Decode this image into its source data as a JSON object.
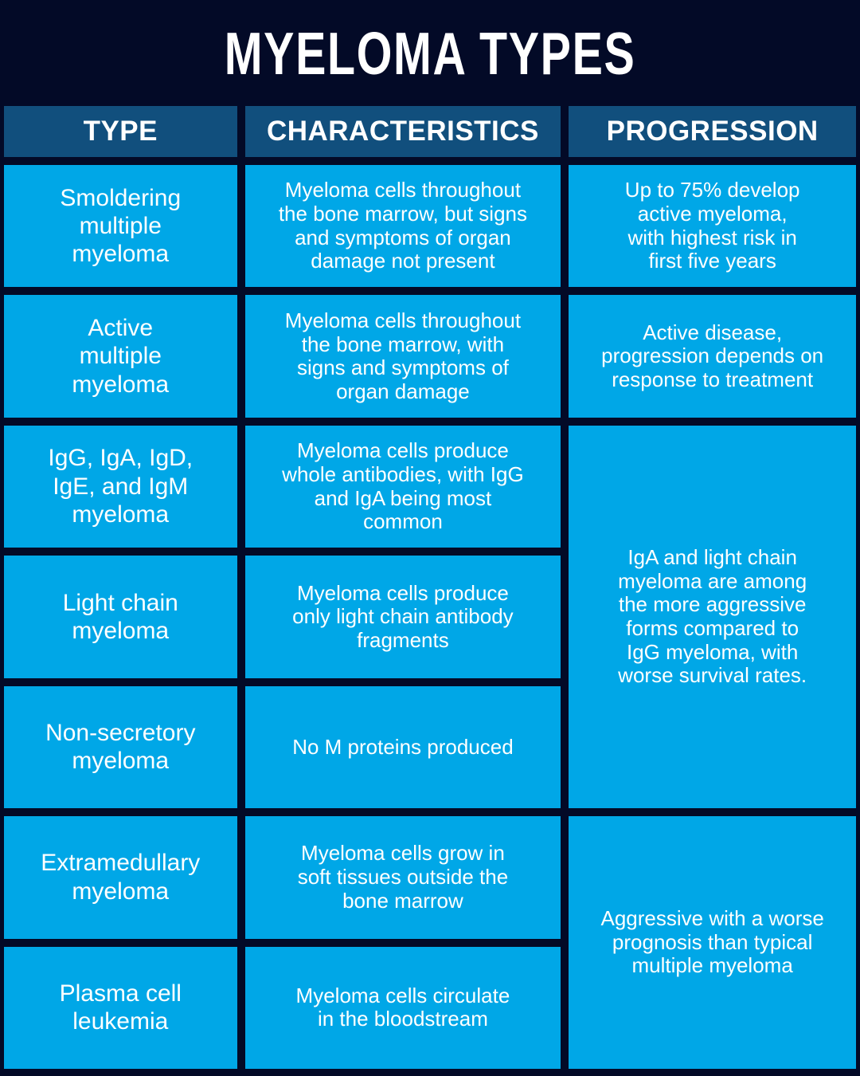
{
  "colors": {
    "background_navy": "#030a27",
    "header_cell_blue": "#114f7d",
    "body_cell_blue": "#00a7e7",
    "text_white": "#ffffff"
  },
  "chart_data": {
    "type": "table",
    "title": "MYELOMA TYPES",
    "columns": [
      "TYPE",
      "CHARACTERISTICS",
      "PROGRESSION"
    ],
    "rows": [
      {
        "type": "Smoldering\nmultiple\nmyeloma",
        "characteristics": "Myeloma cells throughout\nthe bone marrow, but signs\nand symptoms of organ\ndamage not present",
        "progression": "Up to 75% develop\nactive myeloma,\nwith highest risk in\nfirst five years"
      },
      {
        "type": "Active\nmultiple\nmyeloma",
        "characteristics": "Myeloma cells throughout\nthe bone marrow, with\nsigns and symptoms of\norgan damage",
        "progression": "Active disease,\nprogression depends on\nresponse to treatment"
      },
      {
        "type": "IgG, IgA, IgD,\nIgE, and IgM\nmyeloma",
        "characteristics": "Myeloma cells produce\nwhole antibodies, with IgG\nand IgA being most\ncommon"
      },
      {
        "type": "Light chain\nmyeloma",
        "characteristics": "Myeloma cells produce\nonly light chain antibody\nfragments"
      },
      {
        "type": "Non-secretory\nmyeloma",
        "characteristics": "No M proteins produced"
      },
      {
        "type": "Extramedullary\nmyeloma",
        "characteristics": "Myeloma cells grow in\nsoft tissues outside the\nbone marrow"
      },
      {
        "type": "Plasma cell\nleukemia",
        "characteristics": "Myeloma cells circulate\nin the bloodstream"
      }
    ],
    "merged_progression": [
      {
        "spans_rows": "3-5",
        "text": "IgA and light chain\nmyeloma are among\nthe more aggressive\nforms compared to\nIgG myeloma, with\nworse survival rates."
      },
      {
        "spans_rows": "6-7",
        "text": "Aggressive with a worse\nprognosis than typical\nmultiple myeloma"
      }
    ]
  }
}
